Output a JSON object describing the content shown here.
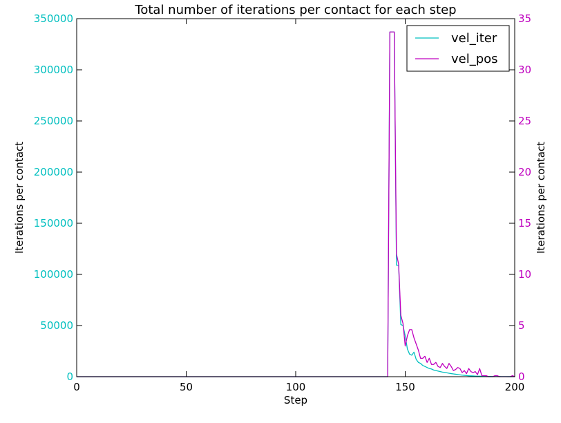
{
  "chart_data": {
    "type": "line",
    "title": "Total number of iterations per contact for each step",
    "xlabel": "Step",
    "ylabel_left": "Iterations per contact",
    "ylabel_right": "Iterations per contact",
    "xlim": [
      0,
      200
    ],
    "ylim_left": [
      0,
      350000
    ],
    "ylim_right": [
      0,
      35
    ],
    "x_ticks": [
      0,
      50,
      100,
      150,
      200
    ],
    "y_ticks_left": [
      0,
      50000,
      100000,
      150000,
      200000,
      250000,
      300000,
      350000
    ],
    "y_ticks_right": [
      0,
      5,
      10,
      15,
      20,
      25,
      30,
      35
    ],
    "grid": false,
    "legend_position": "top-right",
    "colors": {
      "left_axis": "#00bfbf",
      "right_axis": "#bf00bf",
      "frame": "#000000"
    },
    "series": [
      {
        "name": "vel_iter",
        "axis": "left",
        "color": "#00bfbf",
        "x": [
          0,
          142,
          143,
          144,
          145,
          146,
          147,
          148,
          149,
          150,
          151,
          152,
          153,
          154,
          155,
          156,
          157,
          158,
          159,
          160,
          161,
          162,
          163,
          164,
          165,
          166,
          167,
          168,
          169,
          170,
          171,
          172,
          173,
          174,
          175,
          176,
          177,
          178,
          179,
          180,
          181,
          182,
          183,
          184,
          185,
          186,
          187,
          188,
          189,
          190,
          191,
          192,
          193,
          194,
          195,
          196,
          197,
          198,
          199,
          200
        ],
        "y": [
          0,
          0,
          337000,
          337000,
          337000,
          109000,
          109000,
          51000,
          50000,
          40000,
          27000,
          22000,
          21000,
          24000,
          17000,
          14000,
          13000,
          11000,
          10000,
          9000,
          8000,
          7500,
          6500,
          6000,
          5500,
          5000,
          4500,
          4200,
          3800,
          3400,
          3000,
          2700,
          2400,
          2100,
          1800,
          1500,
          1300,
          1100,
          900,
          800,
          700,
          600,
          500,
          450,
          400,
          350,
          300,
          250,
          200,
          180,
          160,
          140,
          120,
          100,
          80,
          60,
          50,
          40,
          30,
          20
        ]
      },
      {
        "name": "vel_pos",
        "axis": "right",
        "color": "#bf00bf",
        "x": [
          0,
          142,
          143,
          144,
          145,
          146,
          147,
          148,
          149,
          150,
          151,
          152,
          153,
          154,
          155,
          156,
          157,
          158,
          159,
          160,
          161,
          162,
          163,
          164,
          165,
          166,
          167,
          168,
          169,
          170,
          171,
          172,
          173,
          174,
          175,
          176,
          177,
          178,
          179,
          180,
          181,
          182,
          183,
          184,
          185,
          186,
          187,
          188,
          189,
          190,
          191,
          192,
          193,
          194,
          195,
          196,
          197,
          198,
          199,
          200
        ],
        "y": [
          0,
          0,
          33.7,
          33.7,
          33.7,
          12.0,
          11.0,
          6.0,
          5.2,
          3.0,
          4.0,
          4.6,
          4.6,
          3.8,
          3.2,
          2.6,
          1.8,
          1.8,
          2.0,
          1.4,
          1.8,
          1.2,
          1.2,
          1.4,
          1.0,
          0.9,
          1.3,
          1.0,
          0.8,
          1.3,
          1.0,
          0.6,
          0.7,
          0.9,
          0.8,
          0.4,
          0.6,
          0.3,
          0.8,
          0.5,
          0.4,
          0.5,
          0.2,
          0.8,
          0.1,
          0.1,
          0.1,
          0.0,
          0.0,
          0.0,
          0.1,
          0.1,
          0.0,
          0.0,
          0.0,
          0.0,
          0.0,
          0.0,
          0.1,
          0.0
        ]
      }
    ]
  }
}
